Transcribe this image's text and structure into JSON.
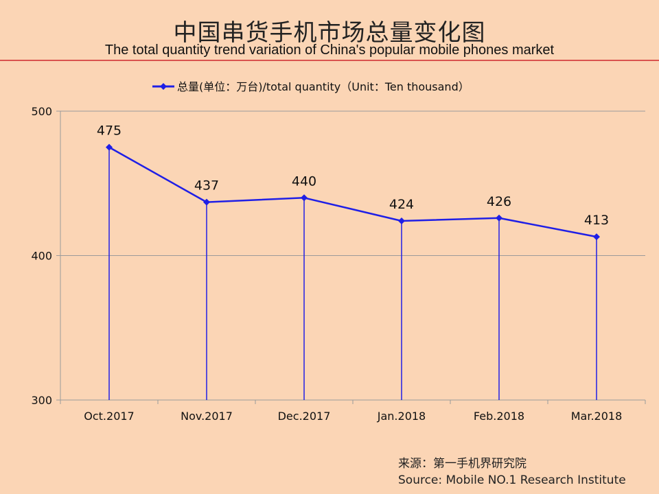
{
  "title_cn": "中国串货手机市场总量变化图",
  "title_en": "The total quantity trend variation of China's popular mobile phones market",
  "source_cn": "来源：第一手机界研究院",
  "source_en": "Source: Mobile NO.1 Research Institute",
  "colors": {
    "background": "#fbd5b5",
    "series": "#1f1fe6",
    "title_rule": "#d9534f",
    "grid": "#9a9a9a"
  },
  "chart_data": {
    "type": "line",
    "categories": [
      "Oct.2017",
      "Nov.2017",
      "Dec.2017",
      "Jan.2018",
      "Feb.2018",
      "Mar.2018"
    ],
    "series": [
      {
        "name": "总量(单位：万台)/total quantity（Unit：Ten thousand）",
        "values": [
          475,
          437,
          440,
          424,
          426,
          413
        ]
      }
    ],
    "ylim": [
      300,
      500
    ],
    "yticks": [
      300,
      400,
      500
    ],
    "data_labels": true,
    "drop_lines": true,
    "grid": true,
    "legend": "top",
    "xlabel": "",
    "ylabel": ""
  }
}
